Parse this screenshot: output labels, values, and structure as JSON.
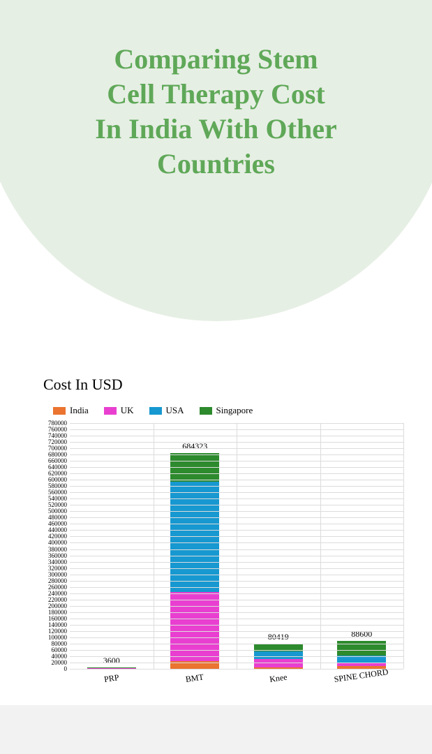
{
  "title_lines": [
    "Comparing Stem",
    "Cell Therapy Cost",
    "In India With Other",
    "Countries"
  ],
  "title_color": "#5fa858",
  "title_fontsize": 40,
  "subtitle": "Cost In USD",
  "subtitle_fontsize": 22,
  "circle_bg_color": "#e6efe4",
  "chart": {
    "type": "stacked-bar",
    "ymax": 780000,
    "ytick_step": 20000,
    "grid_color": "#dcdcdc",
    "background_color": "#ffffff",
    "legend": [
      {
        "label": "India",
        "color": "#ea7430"
      },
      {
        "label": "UK",
        "color": "#e93fd0"
      },
      {
        "label": "USA",
        "color": "#1798d0"
      },
      {
        "label": "Singapore",
        "color": "#2d8a2d"
      }
    ],
    "categories": [
      {
        "name": "PRP",
        "total_label": "3600",
        "values": [
          400,
          1100,
          1000,
          1100
        ]
      },
      {
        "name": "BMT",
        "total_label": "684323",
        "values": [
          24000,
          220000,
          350000,
          90323
        ]
      },
      {
        "name": "Knee",
        "total_label": "80419",
        "values": [
          5000,
          25000,
          25000,
          25419
        ]
      },
      {
        "name": "SPINE CHORD",
        "total_label": "88600",
        "values": [
          9000,
          12000,
          22000,
          45600
        ]
      }
    ]
  }
}
